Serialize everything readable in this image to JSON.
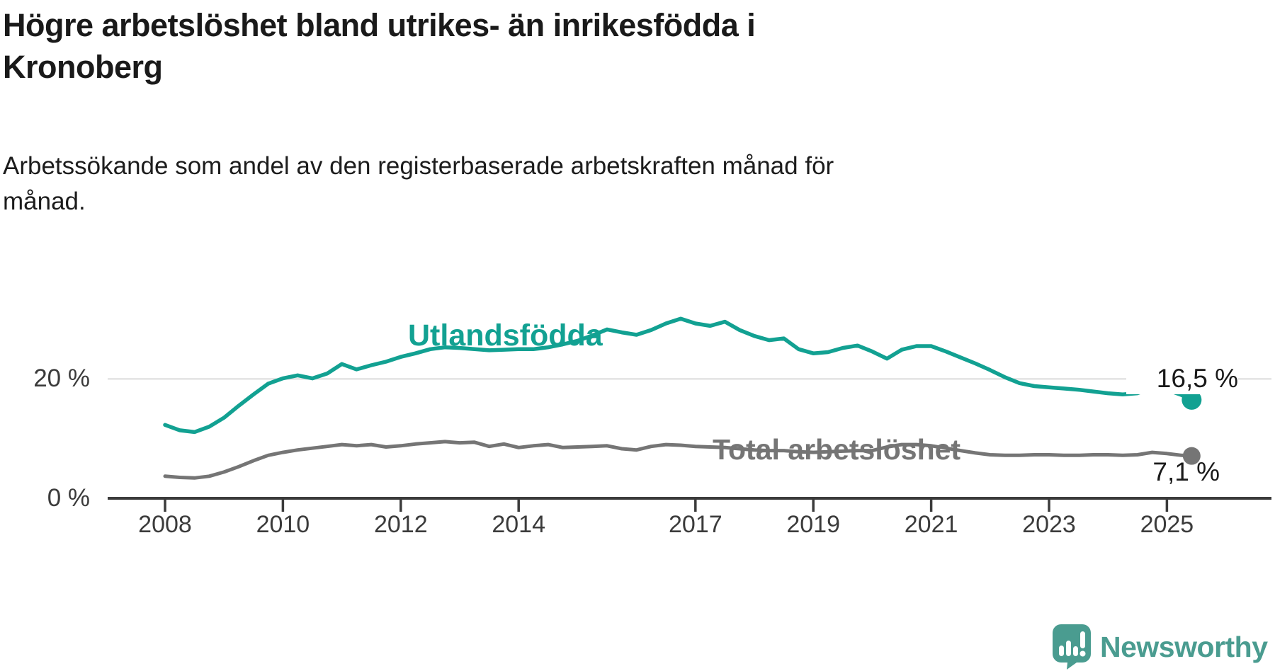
{
  "title": {
    "line1": "Högre arbetslöshet bland utrikes- än inrikesfödda i",
    "line2": "Kronoberg"
  },
  "subtitle": {
    "line1": "Arbetssökande som andel av den registerbaserade arbetskraften månad för",
    "line2": "månad."
  },
  "chart_data": {
    "type": "line",
    "title": "Högre arbetslöshet bland utrikes- än inrikesfödda i Kronoberg",
    "subtitle": "Arbetssökande som andel av den registerbaserade arbetskraften månad för månad.",
    "x_unit": "decimal year (monthly series Jan 2008 – mid 2025, values in % of registered labour force)",
    "xlim": [
      2007.6,
      2025.8
    ],
    "ylim": [
      0,
      32
    ],
    "grid": "single horizontal gridline at 20 %",
    "legend_position": "inline labels on lines",
    "x": [
      2008.0,
      2008.25,
      2008.5,
      2008.75,
      2009.0,
      2009.25,
      2009.5,
      2009.75,
      2010.0,
      2010.25,
      2010.5,
      2010.75,
      2011.0,
      2011.25,
      2011.5,
      2011.75,
      2012.0,
      2012.25,
      2012.5,
      2012.75,
      2013.0,
      2013.25,
      2013.5,
      2013.75,
      2014.0,
      2014.25,
      2014.5,
      2014.75,
      2015.0,
      2015.25,
      2015.5,
      2015.75,
      2016.0,
      2016.25,
      2016.5,
      2016.75,
      2017.0,
      2017.25,
      2017.5,
      2017.75,
      2018.0,
      2018.25,
      2018.5,
      2018.75,
      2019.0,
      2019.25,
      2019.5,
      2019.75,
      2020.0,
      2020.25,
      2020.5,
      2020.75,
      2021.0,
      2021.25,
      2021.5,
      2021.75,
      2022.0,
      2022.25,
      2022.5,
      2022.75,
      2023.0,
      2023.25,
      2023.5,
      2023.75,
      2024.0,
      2024.25,
      2024.5,
      2024.75,
      2025.0,
      2025.25,
      2025.42
    ],
    "series": [
      {
        "name": "Utlandsfödda",
        "color": "#12a192",
        "end_label": "16,5 %",
        "end_value": 16.5,
        "values": [
          12.3,
          11.4,
          11.1,
          12.0,
          13.5,
          15.5,
          17.4,
          19.2,
          20.1,
          20.6,
          20.1,
          20.9,
          22.5,
          21.6,
          22.3,
          22.9,
          23.7,
          24.3,
          25.0,
          25.3,
          25.2,
          25.0,
          24.8,
          24.9,
          25.0,
          25.0,
          25.3,
          25.8,
          26.4,
          27.3,
          28.3,
          27.8,
          27.4,
          28.2,
          29.3,
          30.1,
          29.3,
          28.9,
          29.6,
          28.2,
          27.2,
          26.5,
          26.8,
          25.0,
          24.3,
          24.5,
          25.2,
          25.6,
          24.6,
          23.4,
          24.9,
          25.5,
          25.5,
          24.6,
          23.6,
          22.6,
          21.5,
          20.3,
          19.3,
          18.8,
          18.6,
          18.4,
          18.2,
          17.9,
          17.6,
          17.4,
          17.6,
          18.5,
          18.2,
          17.3,
          16.5
        ]
      },
      {
        "name": "Total arbetslöshet",
        "color": "#757575",
        "end_label": "7,1 %",
        "end_value": 7.1,
        "values": [
          3.7,
          3.5,
          3.4,
          3.7,
          4.4,
          5.3,
          6.3,
          7.2,
          7.7,
          8.1,
          8.4,
          8.7,
          9.0,
          8.8,
          9.0,
          8.6,
          8.8,
          9.1,
          9.3,
          9.5,
          9.3,
          9.4,
          8.7,
          9.1,
          8.5,
          8.8,
          9.0,
          8.5,
          8.6,
          8.7,
          8.8,
          8.3,
          8.1,
          8.7,
          9.0,
          8.9,
          8.7,
          8.6,
          8.5,
          8.3,
          8.1,
          8.0,
          8.0,
          7.8,
          7.7,
          7.8,
          7.9,
          8.0,
          8.0,
          8.6,
          9.0,
          9.0,
          8.8,
          8.4,
          8.0,
          7.6,
          7.3,
          7.2,
          7.2,
          7.3,
          7.3,
          7.2,
          7.2,
          7.3,
          7.3,
          7.2,
          7.3,
          7.7,
          7.5,
          7.2,
          7.1
        ]
      }
    ],
    "y_ticks": [
      {
        "value": 20,
        "label": "20 %",
        "gridline": true
      },
      {
        "value": 0,
        "label": "0 %",
        "gridline": false
      }
    ],
    "x_ticks": [
      {
        "year": 2008,
        "label": "2008"
      },
      {
        "year": 2010,
        "label": "2010"
      },
      {
        "year": 2012,
        "label": "2012"
      },
      {
        "year": 2014,
        "label": "2014"
      },
      {
        "year": 2017,
        "label": "2017"
      },
      {
        "year": 2019,
        "label": "2019"
      },
      {
        "year": 2021,
        "label": "2021"
      },
      {
        "year": 2023,
        "label": "2023"
      },
      {
        "year": 2025,
        "label": "2025"
      }
    ]
  },
  "logo": {
    "text": "Newsworthy",
    "icon": "newsworthy-speech-bubble-bar-chart-icon",
    "color": "#4a9c90"
  },
  "colors": {
    "background": "#ffffff",
    "title_text": "#1a1a1a",
    "axis": "#3b3b3b",
    "gridline": "#dbdbdb",
    "series_foreign_born": "#12a192",
    "series_total": "#757575",
    "logo_teal": "#4a9c90"
  }
}
